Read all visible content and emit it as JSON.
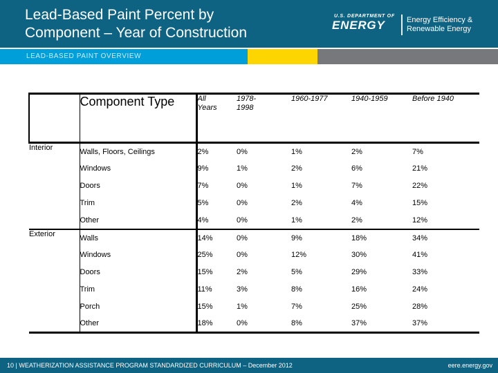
{
  "slide": {
    "title": "Lead-Based Paint Percent by\nComponent – Year of Construction",
    "kicker": "LEAD-BASED PAINT OVERVIEW"
  },
  "logo": {
    "department": "U.S. DEPARTMENT OF",
    "energy": "ENERGY",
    "program": "Energy Efficiency &\nRenewable Energy"
  },
  "table": {
    "corner_header": "Component Type",
    "col_headers": [
      "All\nYears",
      "1978-\n1998",
      "1960-1977",
      "1940-1959",
      "Before 1940"
    ],
    "groups": [
      {
        "name": "Interior",
        "rows": [
          {
            "component": "Walls, Floors, Ceilings",
            "values": [
              "2%",
              "0%",
              "1%",
              "2%",
              "7%"
            ]
          },
          {
            "component": "Windows",
            "values": [
              "9%",
              "1%",
              "2%",
              "6%",
              "21%"
            ]
          },
          {
            "component": "Doors",
            "values": [
              "7%",
              "0%",
              "1%",
              "7%",
              "22%"
            ]
          },
          {
            "component": "Trim",
            "values": [
              "5%",
              "0%",
              "2%",
              "4%",
              "15%"
            ]
          },
          {
            "component": "Other",
            "values": [
              "4%",
              "0%",
              "1%",
              "2%",
              "12%"
            ]
          }
        ]
      },
      {
        "name": "Exterior",
        "rows": [
          {
            "component": "Walls",
            "values": [
              "14%",
              "0%",
              "9%",
              "18%",
              "34%"
            ]
          },
          {
            "component": "Windows",
            "values": [
              "25%",
              "0%",
              "12%",
              "30%",
              "41%"
            ]
          },
          {
            "component": "Doors",
            "values": [
              "15%",
              "2%",
              "5%",
              "29%",
              "33%"
            ]
          },
          {
            "component": "Trim",
            "values": [
              "11%",
              "3%",
              "8%",
              "16%",
              "24%"
            ]
          },
          {
            "component": "Porch",
            "values": [
              "15%",
              "1%",
              "7%",
              "25%",
              "28%"
            ]
          },
          {
            "component": "Other",
            "values": [
              "18%",
              "0%",
              "8%",
              "37%",
              "37%"
            ]
          }
        ]
      }
    ]
  },
  "footer": {
    "left": "10 | WEATHERIZATION ASSISTANCE PROGRAM STANDARDIZED CURRICULUM – December 2012",
    "right": "eere.energy.gov"
  },
  "colors": {
    "header_teal": "#0E6383",
    "accent_blue": "#009FD9",
    "accent_yellow": "#FDD500",
    "accent_gray": "#77787B",
    "kicker_text": "#CFEDF8",
    "table_line": "#000000"
  }
}
